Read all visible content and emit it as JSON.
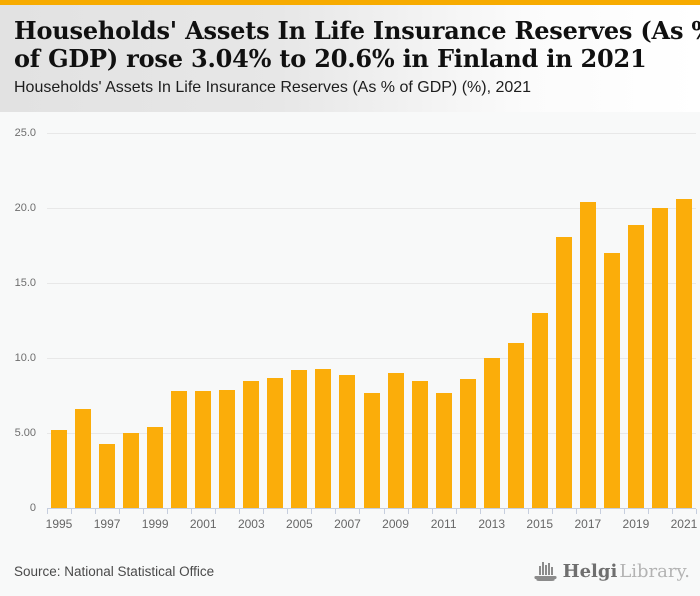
{
  "accent_color": "#f7ab00",
  "header": {
    "title_lines": [
      "Households' Assets In Life Insurance Reserves (As %",
      "of GDP) rose 3.04% to 20.6% in Finland in 2021"
    ],
    "subtitle": "Households' Assets In Life Insurance Reserves (As % of GDP) (%), 2021"
  },
  "chart_data": {
    "type": "bar",
    "title": "Households' Assets In Life Insurance Reserves (As % of GDP) (%), 2021",
    "categories": [
      1995,
      1996,
      1997,
      1998,
      1999,
      2000,
      2001,
      2002,
      2003,
      2004,
      2005,
      2006,
      2007,
      2008,
      2009,
      2010,
      2011,
      2012,
      2013,
      2014,
      2015,
      2016,
      2017,
      2018,
      2019,
      2020,
      2021
    ],
    "values": [
      5.2,
      6.6,
      4.3,
      5.0,
      5.4,
      7.8,
      7.8,
      7.9,
      8.5,
      8.7,
      9.2,
      9.3,
      8.9,
      7.7,
      9.0,
      8.5,
      7.7,
      8.6,
      10.0,
      11.0,
      13.0,
      18.1,
      20.4,
      17.0,
      18.9,
      20.0,
      20.6
    ],
    "bar_color": "#fbad0a",
    "ylim": [
      0,
      25
    ],
    "yticks": [
      0,
      5,
      10,
      15,
      20,
      25
    ],
    "ytick_labels": [
      "0",
      "5.00",
      "10.0",
      "15.0",
      "20.0",
      "25.0"
    ],
    "xtick_labels": [
      "1995",
      "1997",
      "1999",
      "2001",
      "2003",
      "2005",
      "2007",
      "2009",
      "2011",
      "2013",
      "2015",
      "2017",
      "2019",
      "2021"
    ],
    "grid": "horizontal",
    "legend": "none",
    "plot_background": "#f8f9f9"
  },
  "footer": {
    "source": "Source: National Statistical Office",
    "logo": {
      "brand_bold": "Helgi",
      "brand_light": "Library."
    }
  }
}
